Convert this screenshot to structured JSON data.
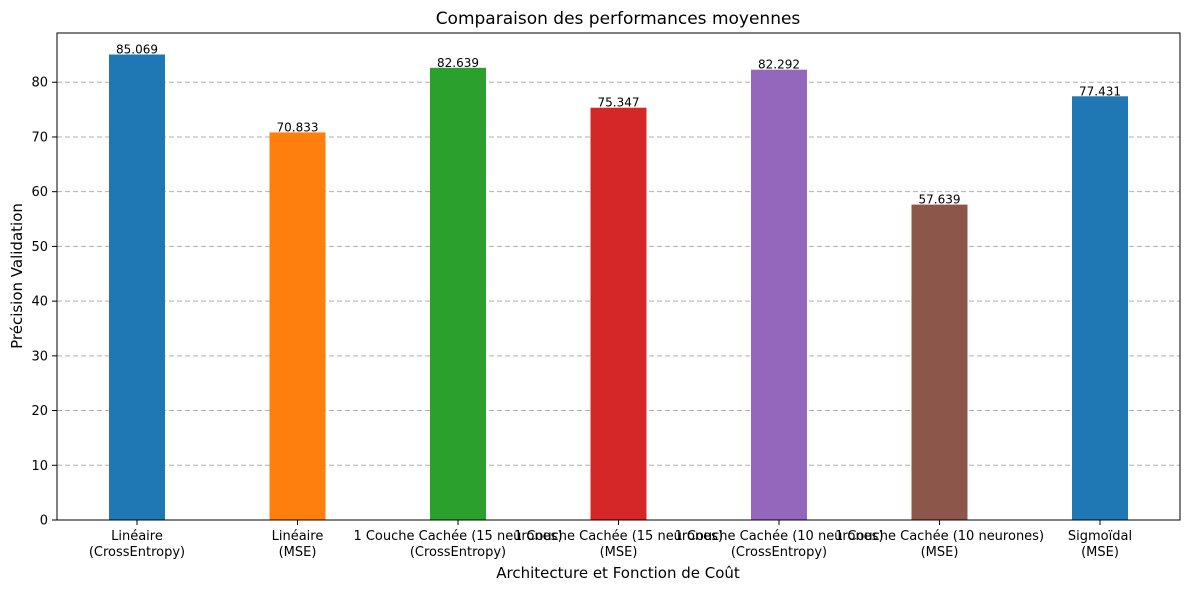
{
  "chart_data": {
    "type": "bar",
    "title": "Comparaison des performances moyennes",
    "xlabel": "Architecture et Fonction de Coût",
    "ylabel": "Précision Validation",
    "ylim": [
      0,
      89
    ],
    "yticks": [
      0,
      10,
      20,
      30,
      40,
      50,
      60,
      70,
      80
    ],
    "grid": "y-dashed",
    "categories": [
      [
        "Linéaire",
        "(CrossEntropy)"
      ],
      [
        "Linéaire",
        "(MSE)"
      ],
      [
        "1 Couche Cachée (15 neurones)",
        "(CrossEntropy)"
      ],
      [
        "1 Couche Cachée (15 neurones)",
        "(MSE)"
      ],
      [
        "1 Couche Cachée (10 neurones)",
        "(CrossEntropy)"
      ],
      [
        "1 Couche Cachée (10 neurones)",
        "(MSE)"
      ],
      [
        "Sigmoïdal",
        "(MSE)"
      ]
    ],
    "values": [
      85.069,
      70.833,
      82.639,
      75.347,
      82.292,
      57.639,
      77.431
    ],
    "value_labels": [
      "85.069",
      "70.833",
      "82.639",
      "75.347",
      "82.292",
      "57.639",
      "77.431"
    ],
    "colors": [
      "#1f77b4",
      "#ff7f0e",
      "#2ca02c",
      "#d62728",
      "#9467bd",
      "#8c564b",
      "#1f77b4"
    ]
  }
}
